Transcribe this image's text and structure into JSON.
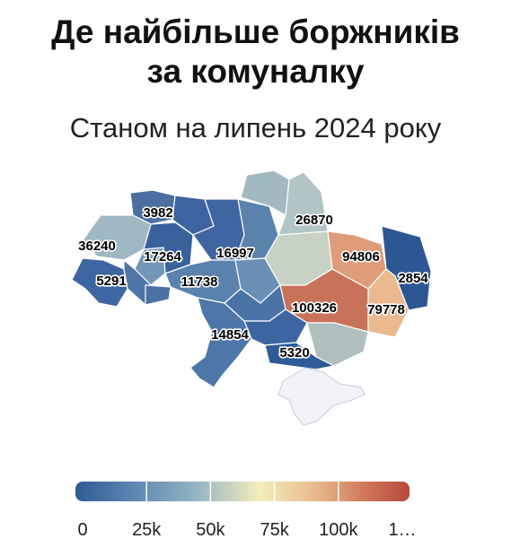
{
  "title_line1": "Де найбільше боржників",
  "title_line2": "за комуналку",
  "subtitle": "Станом на липень 2024 року",
  "colors": {
    "scale": [
      "#2f5b96",
      "#5f88b2",
      "#93b3c4",
      "#f4eebd",
      "#e8b98c",
      "#d07b5c",
      "#b8473a"
    ],
    "crimea": "#f1f3f9"
  },
  "map_labels": [
    {
      "region": "volyn",
      "value": "3982"
    },
    {
      "region": "lviv",
      "value": "36240"
    },
    {
      "region": "zakarpattia",
      "value": "5291"
    },
    {
      "region": "khmelnytskyi",
      "value": "17264"
    },
    {
      "region": "zhytomyr",
      "value": "16997"
    },
    {
      "region": "vinnytsia",
      "value": "11738"
    },
    {
      "region": "sumy",
      "value": "26870"
    },
    {
      "region": "kharkiv",
      "value": "94806"
    },
    {
      "region": "luhansk",
      "value": "2854"
    },
    {
      "region": "dnipro",
      "value": "100326"
    },
    {
      "region": "donetsk",
      "value": "79778"
    },
    {
      "region": "odesa",
      "value": "14854"
    },
    {
      "region": "kherson",
      "value": "5320"
    }
  ],
  "legend": {
    "min": 0,
    "max": 125000,
    "ticks": [
      "0",
      "25k",
      "50k",
      "75k",
      "100k",
      "1…"
    ]
  }
}
